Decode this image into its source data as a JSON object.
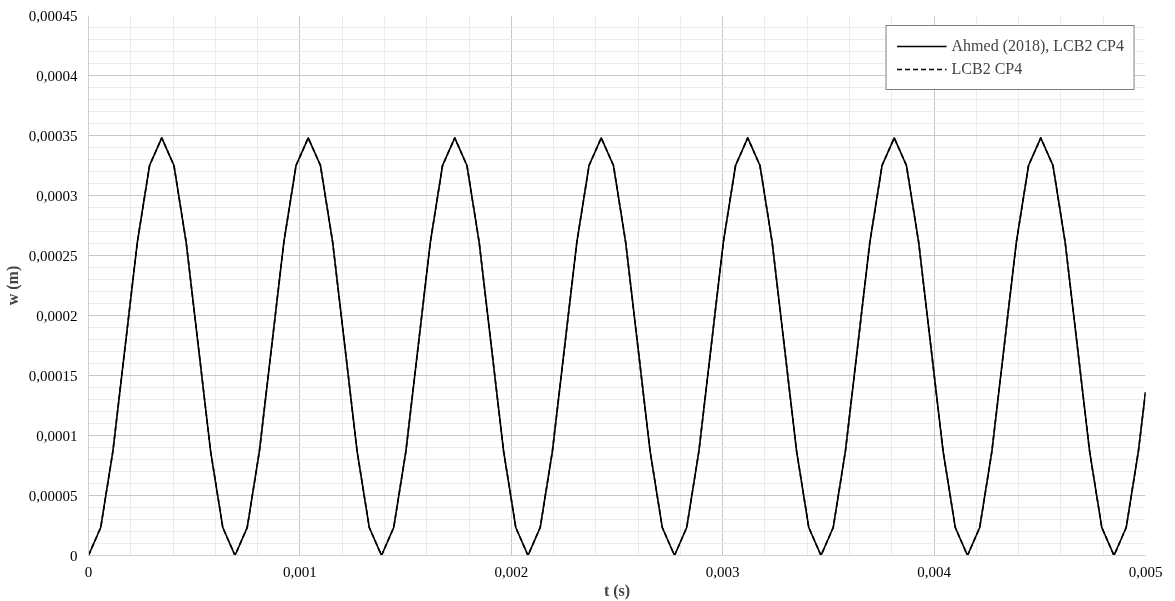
{
  "chart_data": {
    "type": "line",
    "xlabel": "t (s)",
    "ylabel": "w (m)",
    "xlim": [
      0,
      0.005
    ],
    "ylim": [
      0,
      0.00045
    ],
    "xticks": [
      0,
      {
        "value": 0.001,
        "label": "0,001"
      },
      {
        "value": 0.002,
        "label": "0,002"
      },
      {
        "value": 0.003,
        "label": "0,003"
      },
      {
        "value": 0.004,
        "label": "0,004"
      },
      {
        "value": 0.005,
        "label": "0,005"
      }
    ],
    "yticks": [
      0,
      {
        "value": 5e-05,
        "label": "0,00005"
      },
      {
        "value": 0.0001,
        "label": "0,0001"
      },
      {
        "value": 0.00015,
        "label": "0,00015"
      },
      {
        "value": 0.0002,
        "label": "0,0002"
      },
      {
        "value": 0.00025,
        "label": "0,00025"
      },
      {
        "value": 0.0003,
        "label": "0,0003"
      },
      {
        "value": 0.00035,
        "label": "0,00035"
      },
      {
        "value": 0.0004,
        "label": "0,0004"
      },
      {
        "value": 0.00045,
        "label": "0,00045"
      }
    ],
    "grid": true,
    "legend": "top right",
    "x": [
      0,
      5.775e-05,
      0.0001155,
      0.00017325,
      0.000231,
      0.00028875,
      0.0003465,
      0.00040425,
      0.000462,
      0.00051975,
      0.0005775,
      0.00063525,
      0.000693,
      0.00075075,
      0.0008085,
      0.00086625,
      0.000924,
      0.00098175,
      0.0010395,
      0.00109725,
      0.001155,
      0.00121275,
      0.0012705,
      0.00132825,
      0.001386,
      0.00144375,
      0.0015015,
      0.00155925,
      0.001617,
      0.00167475,
      0.0017325,
      0.00179025,
      0.001848,
      0.00190575,
      0.0019635,
      0.00202125,
      0.002079,
      0.00213675,
      0.0021945,
      0.00225225,
      0.00231,
      0.00236775,
      0.0024255,
      0.00248325,
      0.002541,
      0.00259875,
      0.0026565,
      0.00271425,
      0.002772,
      0.00282975,
      0.0028875,
      0.00294525,
      0.003003,
      0.00306075,
      0.0031185,
      0.00317625,
      0.003234,
      0.00329175,
      0.0033495,
      0.00340725,
      0.003465,
      0.00352275,
      0.0035805,
      0.00363825,
      0.003696,
      0.00375375,
      0.0038115,
      0.00386925,
      0.003927,
      0.00398475,
      0.0040425,
      0.00410025,
      0.004158,
      0.00421575,
      0.0042735,
      0.00433125,
      0.004389,
      0.00444675,
      0.0045045,
      0.00456225,
      0.00462,
      0.00467775,
      0.0047355,
      0.00479325,
      0.004851,
      0.00490875,
      0.0049665,
      0.005
    ],
    "series": [
      {
        "name": "Ahmed (2018), LCB2 CP4",
        "color": "#000000",
        "line_style": "solid",
        "values": [
          0,
          2.33e-05,
          8.7e-05,
          0.000174,
          0.000261,
          0.000325,
          0.000348,
          0.000325,
          0.000261,
          0.000174,
          8.7e-05,
          2.33e-05,
          0,
          2.33e-05,
          8.7e-05,
          0.000174,
          0.000261,
          0.000325,
          0.000348,
          0.000325,
          0.000261,
          0.000174,
          8.7e-05,
          2.33e-05,
          0,
          2.33e-05,
          8.7e-05,
          0.000174,
          0.000261,
          0.000325,
          0.000348,
          0.000325,
          0.000261,
          0.000174,
          8.7e-05,
          2.33e-05,
          0,
          2.33e-05,
          8.7e-05,
          0.000174,
          0.000261,
          0.000325,
          0.000348,
          0.000325,
          0.000261,
          0.000174,
          8.7e-05,
          2.33e-05,
          0,
          2.33e-05,
          8.7e-05,
          0.000174,
          0.000261,
          0.000325,
          0.000348,
          0.000325,
          0.000261,
          0.000174,
          8.7e-05,
          2.33e-05,
          0,
          2.33e-05,
          8.7e-05,
          0.000174,
          0.000261,
          0.000325,
          0.000348,
          0.000325,
          0.000261,
          0.000174,
          8.7e-05,
          2.33e-05,
          0,
          2.33e-05,
          8.7e-05,
          0.000174,
          0.000261,
          0.000325,
          0.000348,
          0.000325,
          0.000261,
          0.000174,
          8.7e-05,
          2.33e-05,
          0,
          2.33e-05,
          8.7e-05,
          0.000136
        ]
      },
      {
        "name": "LCB2 CP4",
        "color": "#000000",
        "line_style": "dashed",
        "values": [
          0,
          2.33e-05,
          8.7e-05,
          0.000174,
          0.000261,
          0.000325,
          0.000348,
          0.000325,
          0.000261,
          0.000174,
          8.7e-05,
          2.33e-05,
          0,
          2.33e-05,
          8.7e-05,
          0.000174,
          0.000261,
          0.000325,
          0.000348,
          0.000325,
          0.000261,
          0.000174,
          8.7e-05,
          2.33e-05,
          0,
          2.33e-05,
          8.7e-05,
          0.000174,
          0.000261,
          0.000325,
          0.000348,
          0.000325,
          0.000261,
          0.000174,
          8.7e-05,
          2.33e-05,
          0,
          2.33e-05,
          8.7e-05,
          0.000174,
          0.000261,
          0.000325,
          0.000348,
          0.000325,
          0.000261,
          0.000174,
          8.7e-05,
          2.33e-05,
          0,
          2.33e-05,
          8.7e-05,
          0.000174,
          0.000261,
          0.000325,
          0.000348,
          0.000325,
          0.000261,
          0.000174,
          8.7e-05,
          2.33e-05,
          0,
          2.33e-05,
          8.7e-05,
          0.000174,
          0.000261,
          0.000325,
          0.000348,
          0.000325,
          0.000261,
          0.000174,
          8.7e-05,
          2.33e-05,
          0,
          2.33e-05,
          8.7e-05,
          0.000174,
          0.000261,
          0.000325,
          0.000348,
          0.000325,
          0.000261,
          0.000174,
          8.7e-05,
          2.33e-05,
          0,
          2.33e-05,
          8.7e-05,
          0.000136
        ]
      }
    ]
  }
}
